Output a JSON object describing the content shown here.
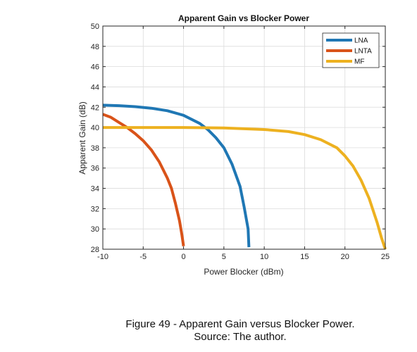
{
  "chart_data": {
    "type": "line",
    "title": "Apparent Gain vs Blocker Power",
    "xlabel": "Power Blocker (dBm)",
    "ylabel": "Apparent Gain (dB)",
    "xlim": [
      -10,
      25
    ],
    "ylim": [
      28,
      50
    ],
    "xticks": [
      -10,
      -5,
      0,
      5,
      10,
      15,
      20,
      25
    ],
    "yticks": [
      28,
      30,
      32,
      34,
      36,
      38,
      40,
      42,
      44,
      46,
      48,
      50
    ],
    "grid": true,
    "legend_position": "top-right",
    "series": [
      {
        "name": "LNA",
        "color": "#1f77b4",
        "x": [
          -10,
          -8,
          -6,
          -4,
          -2,
          0,
          2,
          3,
          4,
          5,
          6,
          7,
          7.5,
          8,
          8.1
        ],
        "y": [
          42.2,
          42.15,
          42.05,
          41.9,
          41.65,
          41.2,
          40.4,
          39.8,
          39.0,
          38.0,
          36.4,
          34.2,
          32.2,
          30.0,
          28.2
        ]
      },
      {
        "name": "LNTA",
        "color": "#d95319",
        "x": [
          -10,
          -9,
          -8,
          -7,
          -6,
          -5,
          -4,
          -3,
          -2,
          -1.5,
          -1,
          -0.5,
          -0.2,
          0
        ],
        "y": [
          41.3,
          41.0,
          40.5,
          40.0,
          39.4,
          38.7,
          37.8,
          36.6,
          35.0,
          34.0,
          32.5,
          30.8,
          29.4,
          28.3
        ]
      },
      {
        "name": "MF",
        "color": "#edb120",
        "x": [
          -10,
          -5,
          0,
          5,
          10,
          13,
          15,
          17,
          19,
          20,
          21,
          22,
          23,
          24,
          24.5,
          25
        ],
        "y": [
          40.0,
          40.0,
          40.0,
          39.95,
          39.8,
          39.6,
          39.3,
          38.8,
          38.0,
          37.2,
          36.2,
          34.8,
          33.0,
          30.6,
          29.2,
          28.0
        ]
      }
    ]
  },
  "caption": {
    "line1": "Figure 49 - Apparent Gain versus Blocker Power.",
    "line2": "Source: The author."
  }
}
